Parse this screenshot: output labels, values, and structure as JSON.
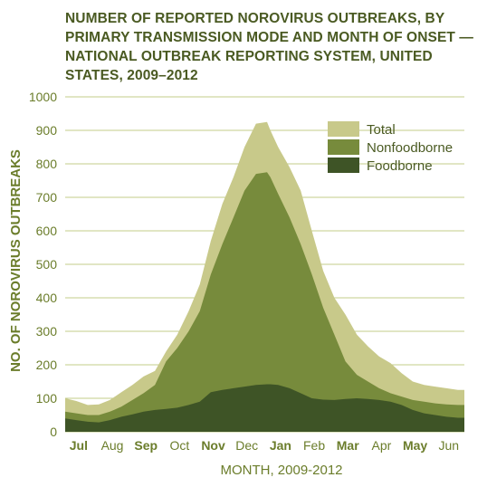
{
  "chart_data": {
    "type": "area",
    "title": "NUMBER OF REPORTED NOROVIRUS OUTBREAKS, BY PRIMARY TRANSMISSION MODE AND MONTH OF ONSET —NATIONAL OUTBREAK REPORTING SYSTEM, UNITED STATES, 2009–2012",
    "xlabel": "MONTH, 2009-2012",
    "ylabel": "NO. OF NOROVIRUS OUTBREAKS",
    "ylim": [
      0,
      1000
    ],
    "yticks": [
      0,
      100,
      200,
      300,
      400,
      500,
      600,
      700,
      800,
      900,
      1000
    ],
    "categories": [
      "Jul",
      "Aug",
      "Sep",
      "Oct",
      "Nov",
      "Dec",
      "Jan",
      "Feb",
      "Mar",
      "Apr",
      "May",
      "Jun"
    ],
    "bold_categories": [
      "Jul",
      "Sep",
      "Nov",
      "Jan",
      "Mar",
      "May"
    ],
    "legend_position": "top-right",
    "grid": true,
    "series": [
      {
        "name": "Total",
        "color": "#c8c98a",
        "x": [
          0,
          0.33,
          0.67,
          1,
          1.33,
          1.67,
          2,
          2.33,
          2.67,
          3,
          3.33,
          3.67,
          4,
          4.33,
          4.67,
          5,
          5.33,
          5.67,
          6,
          6.1,
          6.33,
          6.67,
          7,
          7.33,
          7.67,
          8,
          8.33,
          8.67,
          9,
          9.33,
          9.67,
          10,
          10.33,
          10.67,
          11,
          11.33,
          11.67
        ],
        "values": [
          100,
          92,
          80,
          82,
          95,
          118,
          140,
          165,
          182,
          240,
          290,
          360,
          440,
          570,
          680,
          760,
          850,
          920,
          925,
          900,
          850,
          790,
          720,
          600,
          480,
          400,
          350,
          290,
          255,
          225,
          205,
          175,
          150,
          140,
          135,
          130,
          125
        ]
      },
      {
        "name": "Nonfoodborne",
        "color": "#778b3c",
        "x": [
          0,
          0.33,
          0.67,
          1,
          1.33,
          1.67,
          2,
          2.33,
          2.67,
          3,
          3.33,
          3.67,
          4,
          4.33,
          4.67,
          5,
          5.33,
          5.67,
          6,
          6.1,
          6.33,
          6.67,
          7,
          7.33,
          7.67,
          8,
          8.33,
          8.67,
          9,
          9.33,
          9.67,
          10,
          10.33,
          10.67,
          11,
          11.33,
          11.67
        ],
        "values": [
          60,
          55,
          50,
          50,
          60,
          75,
          95,
          115,
          140,
          210,
          250,
          300,
          360,
          470,
          560,
          640,
          720,
          770,
          775,
          760,
          710,
          640,
          560,
          470,
          370,
          290,
          210,
          170,
          150,
          130,
          115,
          105,
          95,
          90,
          85,
          82,
          80
        ]
      },
      {
        "name": "Foodborne",
        "color": "#3e5426",
        "x": [
          0,
          0.33,
          0.67,
          1,
          1.33,
          1.67,
          2,
          2.33,
          2.67,
          3,
          3.33,
          3.67,
          4,
          4.33,
          4.67,
          5,
          5.33,
          5.67,
          6,
          6.1,
          6.33,
          6.67,
          7,
          7.33,
          7.67,
          8,
          8.33,
          8.67,
          9,
          9.33,
          9.67,
          10,
          10.33,
          10.67,
          11,
          11.33,
          11.67
        ],
        "values": [
          40,
          35,
          30,
          28,
          35,
          45,
          52,
          60,
          65,
          68,
          72,
          80,
          90,
          118,
          125,
          130,
          135,
          140,
          142,
          142,
          140,
          130,
          115,
          100,
          96,
          95,
          98,
          100,
          98,
          95,
          90,
          80,
          65,
          55,
          50,
          45,
          42
        ]
      }
    ]
  }
}
